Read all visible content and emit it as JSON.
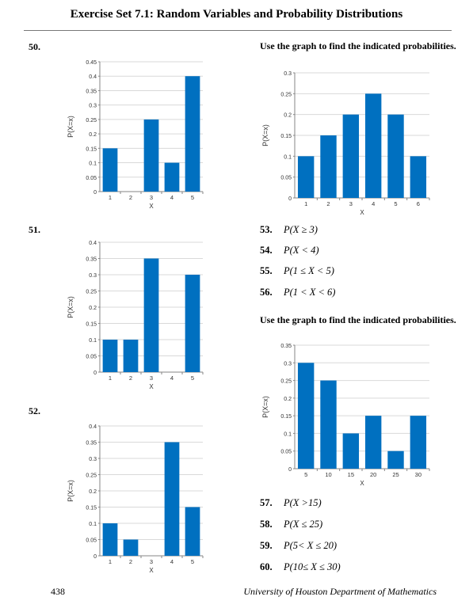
{
  "page": {
    "title": "Exercise Set 7.1: Random Variables and Probability Distributions",
    "page_number": "438",
    "footer": "University of Houston Department of Mathematics",
    "bar_color": "#0070C0"
  },
  "problems": {
    "p50": "50.",
    "p51": "51.",
    "p52": "52."
  },
  "instructions": [
    "Use the graph to find the indicated probabilities.",
    "Use the graph to find the indicated probabilities."
  ],
  "questions": [
    {
      "num": "53.",
      "expr": "P(X ≥ 3)"
    },
    {
      "num": "54.",
      "expr": "P(X < 4)"
    },
    {
      "num": "55.",
      "expr": "P(1 ≤ X < 5)"
    },
    {
      "num": "56.",
      "expr": "P(1 < X < 6)"
    },
    {
      "num": "57.",
      "expr": "P(X >15)"
    },
    {
      "num": "58.",
      "expr": "P(X ≤ 25)"
    },
    {
      "num": "59.",
      "expr": "P(5< X ≤ 20)"
    },
    {
      "num": "60.",
      "expr": "P(10≤ X ≤ 30)"
    }
  ],
  "chart_data": [
    {
      "id": "chart50",
      "type": "bar",
      "xlabel": "X",
      "ylabel": "P(X=x)",
      "categories": [
        "1",
        "2",
        "3",
        "4",
        "5"
      ],
      "values": [
        0.15,
        0,
        0.25,
        0.1,
        0.4
      ],
      "ylim": [
        0,
        0.45
      ],
      "yticks": [
        "0",
        "0.05",
        "0.1",
        "0.15",
        "0.2",
        "0.25",
        "0.3",
        "0.35",
        "0.4",
        "0.45"
      ],
      "grid": true
    },
    {
      "id": "chart51",
      "type": "bar",
      "xlabel": "X",
      "ylabel": "P(X=x)",
      "categories": [
        "1",
        "2",
        "3",
        "4",
        "5"
      ],
      "values": [
        0.1,
        0.1,
        0.35,
        0,
        0.3
      ],
      "ylim": [
        0,
        0.4
      ],
      "yticks": [
        "0",
        "0.05",
        "0.1",
        "0.15",
        "0.2",
        "0.25",
        "0.3",
        "0.35",
        "0.4"
      ],
      "grid": true
    },
    {
      "id": "chart52",
      "type": "bar",
      "xlabel": "X",
      "ylabel": "P(X=x)",
      "categories": [
        "1",
        "2",
        "3",
        "4",
        "5"
      ],
      "values": [
        0.1,
        0.05,
        0,
        0.35,
        0.15
      ],
      "ylim": [
        0,
        0.4
      ],
      "yticks": [
        "0",
        "0.05",
        "0.1",
        "0.15",
        "0.2",
        "0.25",
        "0.3",
        "0.35",
        "0.4"
      ],
      "grid": true
    },
    {
      "id": "chartA",
      "type": "bar",
      "xlabel": "X",
      "ylabel": "P(X=x)",
      "categories": [
        "1",
        "2",
        "3",
        "4",
        "5",
        "6"
      ],
      "values": [
        0.1,
        0.15,
        0.2,
        0.25,
        0.2,
        0.1
      ],
      "ylim": [
        0,
        0.3
      ],
      "yticks": [
        "0",
        "0.05",
        "0.1",
        "0.15",
        "0.2",
        "0.25",
        "0.3"
      ],
      "grid": true
    },
    {
      "id": "chartB",
      "type": "bar",
      "xlabel": "X",
      "ylabel": "P(X=x)",
      "categories": [
        "5",
        "10",
        "15",
        "20",
        "25",
        "30"
      ],
      "values": [
        0.3,
        0.25,
        0.1,
        0.15,
        0.05,
        0.15
      ],
      "ylim": [
        0,
        0.35
      ],
      "yticks": [
        "0",
        "0.05",
        "0.1",
        "0.15",
        "0.2",
        "0.25",
        "0.3",
        "0.35"
      ],
      "grid": true
    }
  ]
}
